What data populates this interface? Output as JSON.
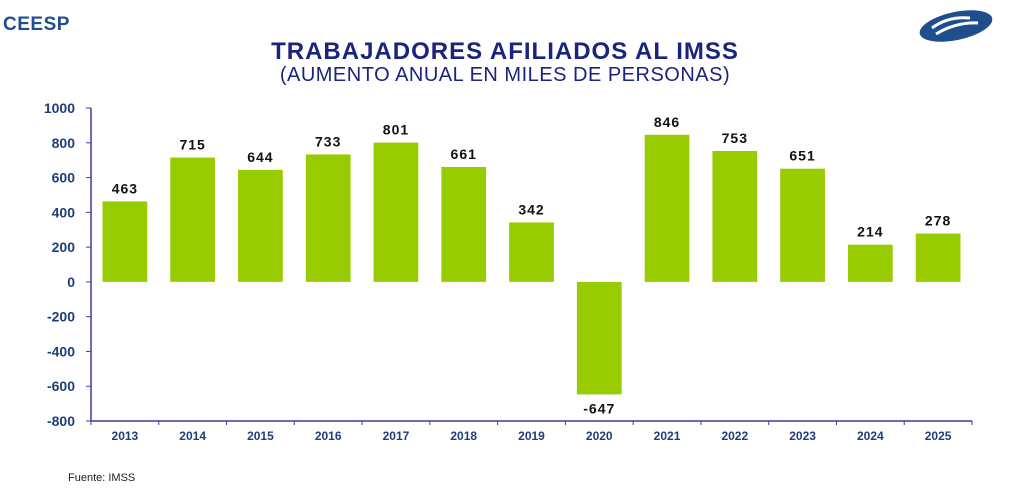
{
  "header": {
    "brand": "CEESP",
    "logo_icon": "ceesp-logo-icon",
    "brand_color": "#1f4e8c"
  },
  "footer": {
    "source": "Fuente: IMSS"
  },
  "chart_data": {
    "type": "bar",
    "title": "TRABAJADORES AFILIADOS AL IMSS",
    "subtitle": "(AUMENTO ANUAL EN MILES DE PERSONAS)",
    "xlabel": "",
    "ylabel": "",
    "categories": [
      "2013",
      "2014",
      "2015",
      "2016",
      "2017",
      "2018",
      "2019",
      "2020",
      "2021",
      "2022",
      "2023",
      "2024",
      "2025"
    ],
    "values": [
      463,
      715,
      644,
      733,
      801,
      661,
      342,
      -647,
      846,
      753,
      651,
      214,
      278
    ],
    "data_labels": [
      "463",
      "715",
      "644",
      "733",
      "801",
      "661",
      "342",
      "-647",
      "846",
      "753",
      "651",
      "214",
      "278"
    ],
    "ylim": [
      -800,
      1000
    ],
    "yticks": [
      1000,
      800,
      600,
      400,
      200,
      0,
      -200,
      -400,
      -600,
      -800
    ],
    "ytick_labels": [
      "1000",
      "800",
      "600",
      "400",
      "200",
      "0",
      "-200",
      "-400",
      "-600",
      "-800"
    ],
    "grid": false,
    "legend": "none",
    "bar_color": "#99cc00",
    "axis_color": "#3b3b9a",
    "label_color": "#1f3d7a"
  }
}
